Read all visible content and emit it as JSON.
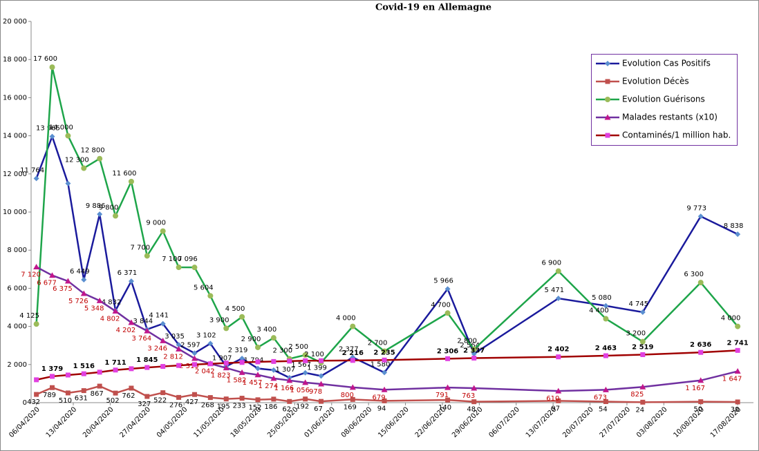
{
  "chart_data": {
    "type": "line",
    "title": "Covid-19 en Allemagne",
    "x": [
      "2020-04-06",
      "2020-04-09",
      "2020-04-12",
      "2020-04-15",
      "2020-04-18",
      "2020-04-21",
      "2020-04-24",
      "2020-04-27",
      "2020-04-30",
      "2020-05-03",
      "2020-05-06",
      "2020-05-09",
      "2020-05-12",
      "2020-05-15",
      "2020-05-18",
      "2020-05-21",
      "2020-05-24",
      "2020-05-27",
      "2020-05-30",
      "2020-06-05",
      "2020-06-11",
      "2020-06-23",
      "2020-06-28",
      "2020-07-14",
      "2020-07-23",
      "2020-07-30",
      "2020-08-10",
      "2020-08-17"
    ],
    "xlim": [
      "2020-04-05",
      "2020-08-20"
    ],
    "xticks": [
      {
        "value": "2020-04-06",
        "label": "06/04/2020"
      },
      {
        "value": "2020-04-13",
        "label": "13/04/2020"
      },
      {
        "value": "2020-04-20",
        "label": "20/04/2020"
      },
      {
        "value": "2020-04-27",
        "label": "27/04/2020"
      },
      {
        "value": "2020-05-04",
        "label": "04/05/2020"
      },
      {
        "value": "2020-05-11",
        "label": "11/05/2020"
      },
      {
        "value": "2020-05-18",
        "label": "18/05/2020"
      },
      {
        "value": "2020-05-25",
        "label": "25/05/2020"
      },
      {
        "value": "2020-06-01",
        "label": "01/06/2020"
      },
      {
        "value": "2020-06-08",
        "label": "08/06/2020"
      },
      {
        "value": "2020-06-15",
        "label": "15/06/2020"
      },
      {
        "value": "2020-06-22",
        "label": "22/06/2020"
      },
      {
        "value": "2020-06-29",
        "label": "29/06/2020"
      },
      {
        "value": "2020-07-06",
        "label": "06/07/2020"
      },
      {
        "value": "2020-07-13",
        "label": "13/07/2020"
      },
      {
        "value": "2020-07-20",
        "label": "20/07/2020"
      },
      {
        "value": "2020-07-27",
        "label": "27/07/2020"
      },
      {
        "value": "2020-08-03",
        "label": "03/08/2020"
      },
      {
        "value": "2020-08-10",
        "label": "10/08/2020"
      },
      {
        "value": "2020-08-17",
        "label": "17/08/2020"
      }
    ],
    "ylim": [
      0,
      20000
    ],
    "yticks": [
      {
        "value": 0,
        "label": "0"
      },
      {
        "value": 2000,
        "label": "2 000"
      },
      {
        "value": 4000,
        "label": "4 000"
      },
      {
        "value": 6000,
        "label": "6 000"
      },
      {
        "value": 8000,
        "label": "8 000"
      },
      {
        "value": 10000,
        "label": "10 000"
      },
      {
        "value": 12000,
        "label": "12 000"
      },
      {
        "value": 14000,
        "label": "14 000"
      },
      {
        "value": 16000,
        "label": "16 000"
      },
      {
        "value": 18000,
        "label": "18 000"
      },
      {
        "value": 20000,
        "label": "20 000"
      }
    ],
    "legend": "upper right",
    "series": [
      {
        "name": "Evolution Cas Positifs",
        "color": "#1a1a9c",
        "marker_color": "#5b8fd0",
        "marker": "diamond",
        "label_color": "#000000",
        "values": [
          11764,
          13965,
          11500,
          6449,
          9886,
          4832,
          6371,
          3844,
          4141,
          3035,
          2597,
          3102,
          1907,
          2319,
          1794,
          1707,
          1307,
          1567,
          1399,
          2377,
          1580,
          5966,
          2564,
          5471,
          5080,
          4745,
          9773,
          8838
        ],
        "value_labels": [
          "11 764",
          "13 965",
          null,
          "6 449",
          "9 886",
          "4 832",
          "6 371",
          "3 844",
          "4 141",
          "3 035",
          "2 597",
          "3 102",
          "1 907",
          "2 319",
          "1 794",
          null,
          "1 307",
          "1 567",
          "1 399",
          "2 377",
          "1 580",
          "5 966",
          "2 564",
          "5 471",
          "5 080",
          "4 745",
          "9 773",
          "8 838"
        ]
      },
      {
        "name": "Evolution Décès",
        "color": "#c0504d",
        "marker_color": "#c0504d",
        "marker": "square",
        "label_color": "#000000",
        "values": [
          432,
          789,
          510,
          631,
          867,
          502,
          762,
          327,
          522,
          276,
          427,
          268,
          195,
          233,
          152,
          186,
          62,
          192,
          67,
          169,
          94,
          140,
          48,
          97,
          54,
          24,
          50,
          38
        ],
        "value_labels": [
          "432",
          "789",
          "510",
          "631",
          "867",
          "502",
          "762",
          "327",
          "522",
          "276",
          "427",
          "268",
          "195",
          "233",
          "152",
          "186",
          "62",
          "192",
          "67",
          "169",
          "94",
          "140",
          "48",
          "97",
          "54",
          "24",
          "50",
          "38"
        ]
      },
      {
        "name": "Evolution Guérisons",
        "color": "#1ea54a",
        "marker_color": "#9bbb59",
        "marker": "circle",
        "label_color": "#000000",
        "values": [
          4125,
          17600,
          14000,
          12300,
          12800,
          9800,
          11600,
          7700,
          9000,
          7100,
          7096,
          5604,
          3900,
          4500,
          2900,
          3400,
          2300,
          2500,
          2100,
          4000,
          2700,
          4700,
          2800,
          6900,
          4400,
          3200,
          6300,
          4000
        ],
        "value_labels": [
          "4 125",
          "17 600",
          "14 000",
          "12 300",
          "12 800",
          "9 800",
          "11 600",
          "7 700",
          "9 000",
          "7 100",
          "7 096",
          "5 604",
          "3 900",
          "4 500",
          "2 900",
          "3 400",
          "2 300",
          "2 500",
          "2 100",
          "4 000",
          "2 700",
          "4 700",
          "2 800",
          "6 900",
          "4 400",
          "3 200",
          "6 300",
          "4 000"
        ]
      },
      {
        "name": "Malades restants (x10)",
        "color": "#7030a0",
        "marker_color": "#c0168c",
        "marker": "triangle",
        "label_color": "#c00000",
        "values": [
          7120,
          6677,
          6375,
          5726,
          5348,
          4802,
          4202,
          3764,
          3246,
          2812,
          2319,
          2042,
          1823,
          1582,
          1457,
          1274,
          1166,
          1056,
          978,
          800,
          679,
          791,
          763,
          610,
          673,
          825,
          1167,
          1647
        ],
        "value_labels": [
          "7 120",
          "6 677",
          "6 375",
          "5 726",
          "5 348",
          "4 802",
          "4 202",
          "3 764",
          "3 246",
          "2 812",
          "2 319",
          "2 042",
          "1 823",
          "1 582",
          "1 457",
          "1 274",
          "1 166",
          "1 056",
          "978",
          "800",
          "679",
          "791",
          "763",
          "610",
          "673",
          "825",
          "1 167",
          "1 647"
        ]
      },
      {
        "name": "Contaminés/1 million hab.",
        "color": "#a00000",
        "marker_color": "#e040e0",
        "marker": "square",
        "label_color": "#000000",
        "values": [
          1200,
          1379,
          1450,
          1516,
          1600,
          1711,
          1780,
          1845,
          1900,
          1950,
          2000,
          2040,
          2080,
          2110,
          2140,
          2160,
          2180,
          2200,
          2200,
          2216,
          2235,
          2306,
          2337,
          2402,
          2463,
          2519,
          2636,
          2741
        ],
        "value_labels": [
          null,
          "1 379",
          null,
          "1 516",
          null,
          "1 711",
          null,
          "1 845",
          null,
          null,
          null,
          null,
          null,
          null,
          null,
          null,
          null,
          null,
          null,
          "2 216",
          "2 235",
          "2 306",
          "2 337",
          "2 402",
          "2 463",
          "2 519",
          "2 636",
          "2 741"
        ]
      }
    ]
  }
}
